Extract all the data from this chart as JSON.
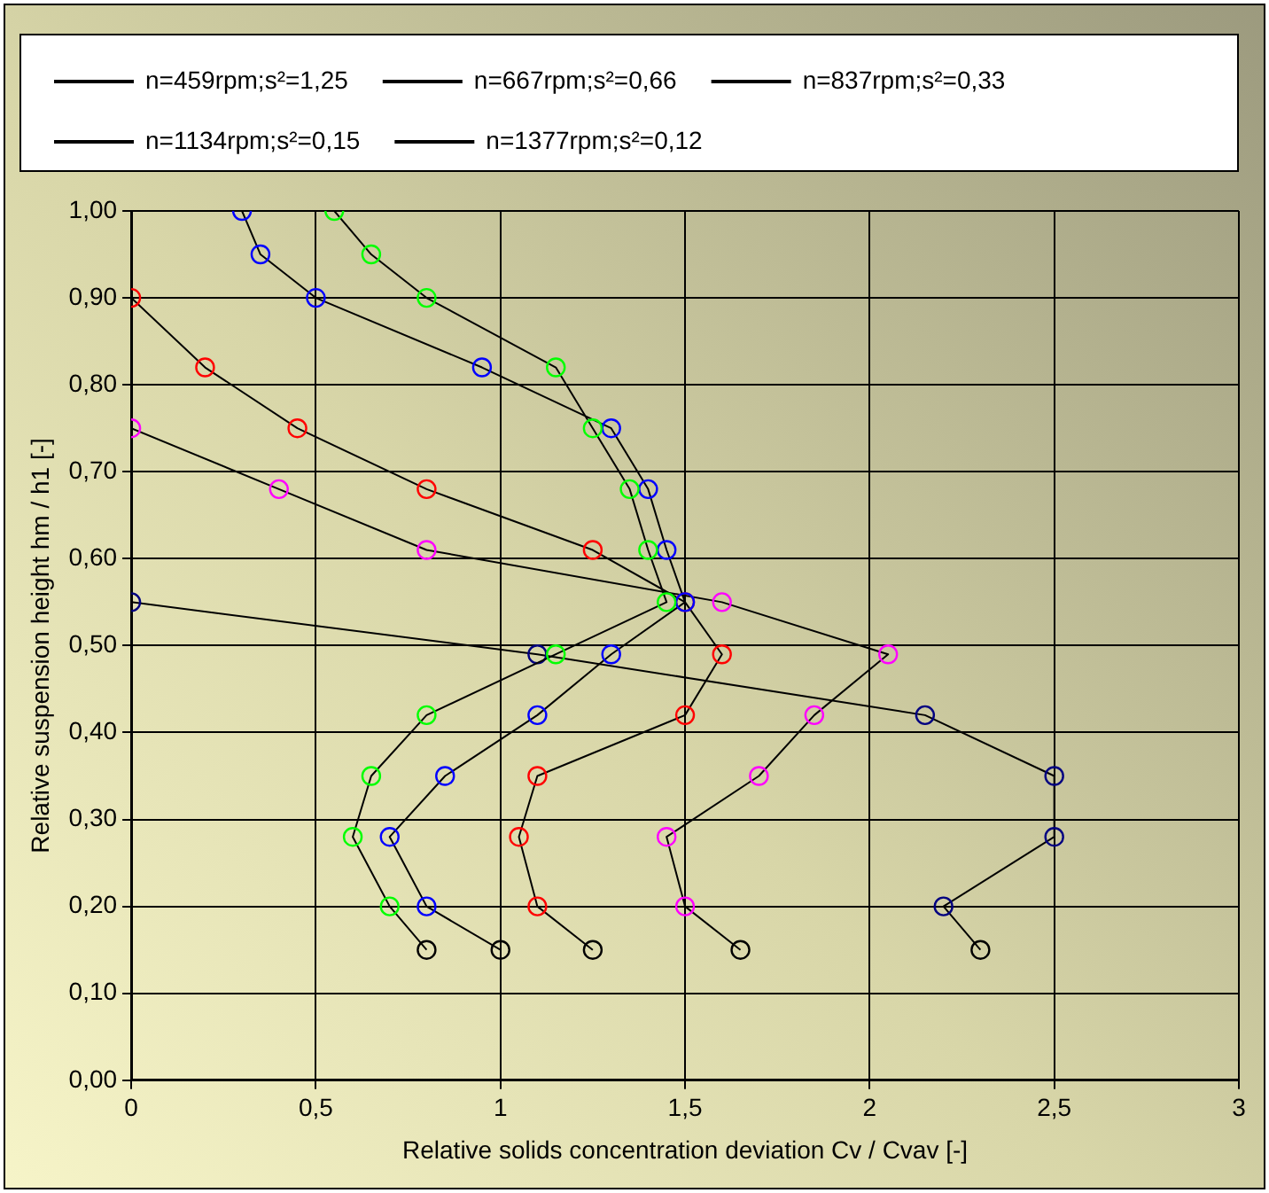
{
  "chart_data": {
    "type": "line",
    "xlabel": "Relative solids concentration deviation Cv / Cvav [-]",
    "ylabel": "Relative suspension height hm / h1 [-]",
    "xlim": [
      0,
      3
    ],
    "xticks": [
      0,
      {
        "value": 0.5,
        "label": "0,5"
      },
      1,
      {
        "value": 1.5,
        "label": "1,5"
      },
      2,
      {
        "value": 2.5,
        "label": "2,5"
      },
      3
    ],
    "ylim": [
      0,
      1
    ],
    "yticks": [
      {
        "value": 0,
        "label": "0,00"
      },
      {
        "value": 0.1,
        "label": "0,10"
      },
      {
        "value": 0.2,
        "label": "0,20"
      },
      {
        "value": 0.3,
        "label": "0,30"
      },
      {
        "value": 0.4,
        "label": "0,40"
      },
      {
        "value": 0.5,
        "label": "0,50"
      },
      {
        "value": 0.6,
        "label": "0,60"
      },
      {
        "value": 0.7,
        "label": "0,70"
      },
      {
        "value": 0.8,
        "label": "0,80"
      },
      {
        "value": 0.9,
        "label": "0,90"
      },
      {
        "value": 1,
        "label": "1,00"
      }
    ],
    "grid": true,
    "legend": "top",
    "marker": "circle",
    "line_style": "solid",
    "series": [
      {
        "name": "n=459rpm;s²=1,25",
        "color": "#000000",
        "x": [
          0,
          1.1,
          2.15,
          2.5,
          2.5,
          2.2,
          2.3
        ],
        "values": [
          0.55,
          0.49,
          0.42,
          0.35,
          0.28,
          0.2,
          0.15
        ],
        "colors": [
          "#000080",
          "#000080",
          "#000080",
          "#000080",
          "#000080",
          "#000080",
          "#000000"
        ]
      },
      {
        "name": "n=667rpm;s²=0,66",
        "color": "#000000",
        "x": [
          0,
          0.4,
          0.8,
          1.6,
          2.05,
          1.85,
          1.7,
          1.45,
          1.5,
          1.65
        ],
        "values": [
          0.75,
          0.68,
          0.61,
          0.55,
          0.49,
          0.42,
          0.35,
          0.28,
          0.2,
          0.15
        ],
        "colors": [
          "#ff00ff",
          "#ff00ff",
          "#ff00ff",
          "#ff00ff",
          "#ff00ff",
          "#ff00ff",
          "#ff00ff",
          "#ff00ff",
          "#ff00ff",
          "#000000"
        ]
      },
      {
        "name": "n=837rpm;s²=0,33",
        "color": "#000000",
        "x": [
          0,
          0.2,
          0.45,
          0.8,
          1.25,
          1.5,
          1.6,
          1.5,
          1.1,
          1.05,
          1.1,
          1.25
        ],
        "values": [
          0.9,
          0.82,
          0.75,
          0.68,
          0.61,
          0.55,
          0.49,
          0.42,
          0.35,
          0.28,
          0.2,
          0.15
        ],
        "colors": [
          "#ff0000",
          "#ff0000",
          "#ff0000",
          "#ff0000",
          "#ff0000",
          "#ff0000",
          "#ff0000",
          "#ff0000",
          "#ff0000",
          "#ff0000",
          "#ff0000",
          "#000000"
        ]
      },
      {
        "name": "n=1134rpm;s²=0,15",
        "color": "#000000",
        "x": [
          0.3,
          0.35,
          0.5,
          0.95,
          1.3,
          1.4,
          1.45,
          1.5,
          1.3,
          1.1,
          0.85,
          0.7,
          0.8,
          1.0
        ],
        "values": [
          1.0,
          0.95,
          0.9,
          0.82,
          0.75,
          0.68,
          0.61,
          0.55,
          0.49,
          0.42,
          0.35,
          0.28,
          0.2,
          0.15
        ],
        "colors": [
          "#0000ff",
          "#0000ff",
          "#0000ff",
          "#0000ff",
          "#0000ff",
          "#0000ff",
          "#0000ff",
          "#0000ff",
          "#0000ff",
          "#0000ff",
          "#0000ff",
          "#0000ff",
          "#0000ff",
          "#000000"
        ]
      },
      {
        "name": "n=1377rpm;s²=0,12",
        "color": "#000000",
        "x": [
          0.55,
          0.65,
          0.8,
          1.15,
          1.25,
          1.35,
          1.4,
          1.45,
          1.15,
          0.8,
          0.65,
          0.6,
          0.7,
          0.8
        ],
        "values": [
          1.0,
          0.95,
          0.9,
          0.82,
          0.75,
          0.68,
          0.61,
          0.55,
          0.49,
          0.42,
          0.35,
          0.28,
          0.2,
          0.15
        ],
        "colors": [
          "#00ff00",
          "#00ff00",
          "#00ff00",
          "#00ff00",
          "#00ff00",
          "#00ff00",
          "#00ff00",
          "#00ff00",
          "#00ff00",
          "#00ff00",
          "#00ff00",
          "#00ff00",
          "#00ff00",
          "#000000"
        ]
      }
    ]
  }
}
